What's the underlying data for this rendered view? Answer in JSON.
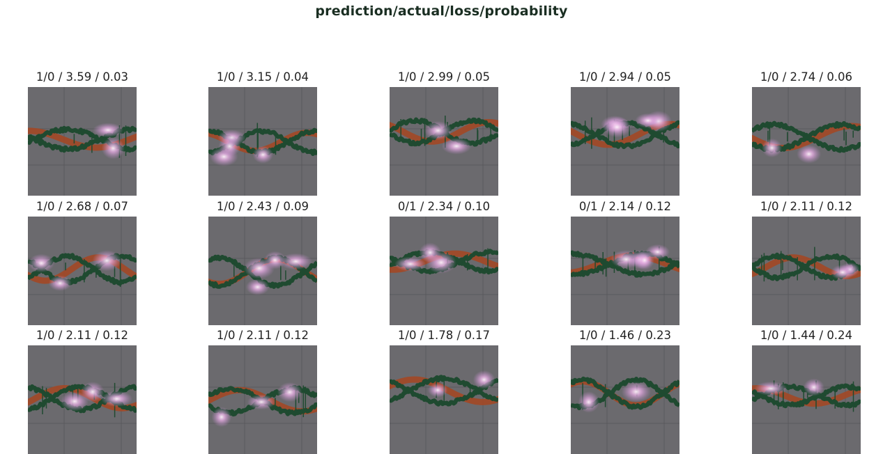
{
  "title": "prediction/actual/loss/probability",
  "colors": {
    "panel": "#6b6a6e",
    "green_trace": "#1f4a30",
    "orange_trace": "#a04a28",
    "heat": "#f2c6ef",
    "title_text": "#1a2e22"
  },
  "grid": {
    "rows": 3,
    "columns": 5,
    "cells": [
      {
        "label": "1/0 / 3.59 / 0.03"
      },
      {
        "label": "1/0 / 3.15 / 0.04"
      },
      {
        "label": "1/0 / 2.99 / 0.05"
      },
      {
        "label": "1/0 / 2.94 / 0.05"
      },
      {
        "label": "1/0 / 2.74 / 0.06"
      },
      {
        "label": "1/0 / 2.68 / 0.07"
      },
      {
        "label": "1/0 / 2.43 / 0.09"
      },
      {
        "label": "0/1 / 2.34 / 0.10"
      },
      {
        "label": "0/1 / 2.14 / 0.12"
      },
      {
        "label": "1/0 / 2.11 / 0.12"
      },
      {
        "label": "1/0 / 2.11 / 0.12"
      },
      {
        "label": "1/0 / 2.11 / 0.12"
      },
      {
        "label": "1/0 / 1.78 / 0.17"
      },
      {
        "label": "1/0 / 1.46 / 0.23"
      },
      {
        "label": "1/0 / 1.44 / 0.24"
      }
    ]
  }
}
